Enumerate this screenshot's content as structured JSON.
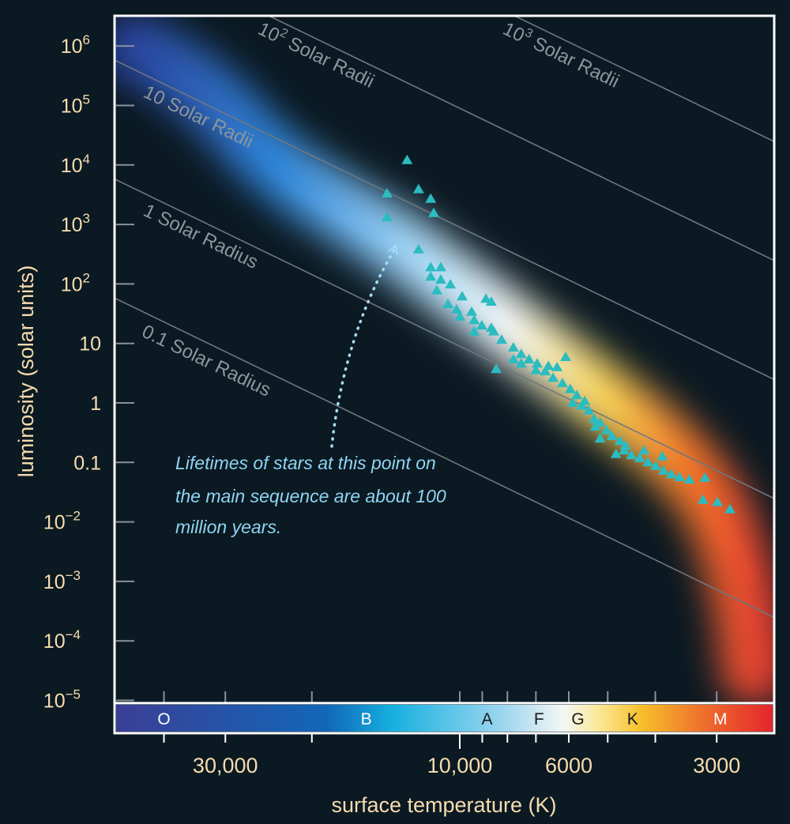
{
  "chart_data": {
    "type": "scatter",
    "title": "",
    "xlabel": "surface temperature (K)",
    "ylabel": "luminosity (solar units)",
    "x_scale": "log-reversed",
    "y_scale": "log",
    "xlim_K": [
      50500,
      2290
    ],
    "ylim_log_luminosity": [
      -5.3,
      6.7
    ],
    "y_ticks": [
      {
        "log": 6,
        "base": "10",
        "exp": "6"
      },
      {
        "log": 5,
        "base": "10",
        "exp": "5"
      },
      {
        "log": 4,
        "base": "10",
        "exp": "4"
      },
      {
        "log": 3,
        "base": "10",
        "exp": "3"
      },
      {
        "log": 2,
        "base": "10",
        "exp": "2"
      },
      {
        "log": 1,
        "base": "10",
        "exp": ""
      },
      {
        "log": 0,
        "base": "1",
        "exp": ""
      },
      {
        "log": -1,
        "base": "0.1",
        "exp": ""
      },
      {
        "log": -2,
        "base": "10",
        "exp": "−2"
      },
      {
        "log": -3,
        "base": "10",
        "exp": "−3"
      },
      {
        "log": -4,
        "base": "10",
        "exp": "−4"
      },
      {
        "log": -5,
        "base": "10",
        "exp": "−5"
      }
    ],
    "x_ticks": [
      40000,
      30000,
      20000,
      10000,
      9000,
      8000,
      7000,
      6000,
      5000,
      4000,
      3000
    ],
    "x_tick_labels": [
      {
        "value": 30000,
        "label": "30,000"
      },
      {
        "value": 10000,
        "label": "10,000"
      },
      {
        "value": 6000,
        "label": "6000"
      },
      {
        "value": 3000,
        "label": "3000"
      }
    ],
    "spectral_classes": [
      {
        "label": "O",
        "temp": 40000,
        "color": "#ffffff"
      },
      {
        "label": "B",
        "temp": 15500,
        "color": "#ffffff"
      },
      {
        "label": "A",
        "temp": 8800,
        "color": "#1a1a1a"
      },
      {
        "label": "F",
        "temp": 6900,
        "color": "#1a1a1a"
      },
      {
        "label": "G",
        "temp": 5750,
        "color": "#1a1a1a"
      },
      {
        "label": "K",
        "temp": 4450,
        "color": "#1a1a1a"
      },
      {
        "label": "M",
        "temp": 2950,
        "color": "#ffffff"
      }
    ],
    "radius_lines": [
      {
        "radius": 0.1,
        "label_main": "0.1 Solar Radius",
        "label_exp": ""
      },
      {
        "radius": 1,
        "label_main": "1 Solar Radius",
        "label_exp": ""
      },
      {
        "radius": 10,
        "label_main": "10 Solar Radii",
        "label_exp": ""
      },
      {
        "radius": 100,
        "label_main": "Solar Radii",
        "label_exp": "2"
      },
      {
        "radius": 1000,
        "label_main": "Solar Radii",
        "label_exp": "3"
      }
    ],
    "annotation": [
      "Lifetimes of stars at this point on",
      "the main sequence are about 100",
      "million years."
    ],
    "series": [
      {
        "name": "stars",
        "marker": "triangle",
        "color": "#2bbcc0",
        "points_T_logL": [
          [
            12800,
            4.08
          ],
          [
            14060,
            3.52
          ],
          [
            14060,
            3.12
          ],
          [
            12130,
            3.59
          ],
          [
            11460,
            3.43
          ],
          [
            11300,
            3.19
          ],
          [
            12130,
            2.58
          ],
          [
            11460,
            2.28
          ],
          [
            10930,
            2.28
          ],
          [
            11460,
            2.12
          ],
          [
            10930,
            2.07
          ],
          [
            11140,
            1.89
          ],
          [
            10450,
            1.99
          ],
          [
            9890,
            1.79
          ],
          [
            10570,
            1.66
          ],
          [
            10150,
            1.57
          ],
          [
            9460,
            1.53
          ],
          [
            8850,
            1.75
          ],
          [
            8630,
            1.7
          ],
          [
            9350,
            1.39
          ],
          [
            9020,
            1.3
          ],
          [
            8530,
            1.2
          ],
          [
            8220,
            1.06
          ],
          [
            8430,
            0.57
          ],
          [
            7780,
            0.93
          ],
          [
            7500,
            0.82
          ],
          [
            7230,
            0.73
          ],
          [
            6960,
            0.66
          ],
          [
            6700,
            0.53
          ],
          [
            6090,
            0.77
          ],
          [
            6460,
            0.42
          ],
          [
            6180,
            0.33
          ],
          [
            5960,
            0.23
          ],
          [
            5780,
            0.13
          ],
          [
            5570,
            0.03
          ],
          [
            5470,
            -0.13
          ],
          [
            5330,
            -0.27
          ],
          [
            5180,
            -0.33
          ],
          [
            5030,
            -0.46
          ],
          [
            4900,
            -0.56
          ],
          [
            4720,
            -0.64
          ],
          [
            4630,
            -0.8
          ],
          [
            4470,
            -0.88
          ],
          [
            4300,
            -0.93
          ],
          [
            4140,
            -1.0
          ],
          [
            3990,
            -1.06
          ],
          [
            3850,
            -1.14
          ],
          [
            3710,
            -1.2
          ],
          [
            3570,
            -1.25
          ],
          [
            3410,
            -1.29
          ],
          [
            3170,
            -1.26
          ],
          [
            3200,
            -1.63
          ],
          [
            2990,
            -1.67
          ],
          [
            2820,
            -1.79
          ],
          [
            8630,
            1.26
          ],
          [
            7500,
            0.66
          ],
          [
            6340,
            0.6
          ],
          [
            5890,
            0.0
          ],
          [
            5300,
            -0.4
          ],
          [
            4810,
            -0.86
          ],
          [
            4220,
            -0.8
          ],
          [
            3870,
            -0.9
          ],
          [
            5180,
            -0.6
          ],
          [
            7780,
            0.73
          ],
          [
            9350,
            1.2
          ],
          [
            10000,
            1.45
          ],
          [
            7000,
            0.55
          ],
          [
            6600,
            0.62
          ],
          [
            5650,
            -0.05
          ],
          [
            4600,
            -0.72
          ]
        ]
      }
    ],
    "colors": {
      "background": "#0b1922",
      "frame": "#ffffff",
      "tick_text": "#f7dcae",
      "note": "#8fd4f2",
      "star": "#2bbcc0"
    }
  }
}
